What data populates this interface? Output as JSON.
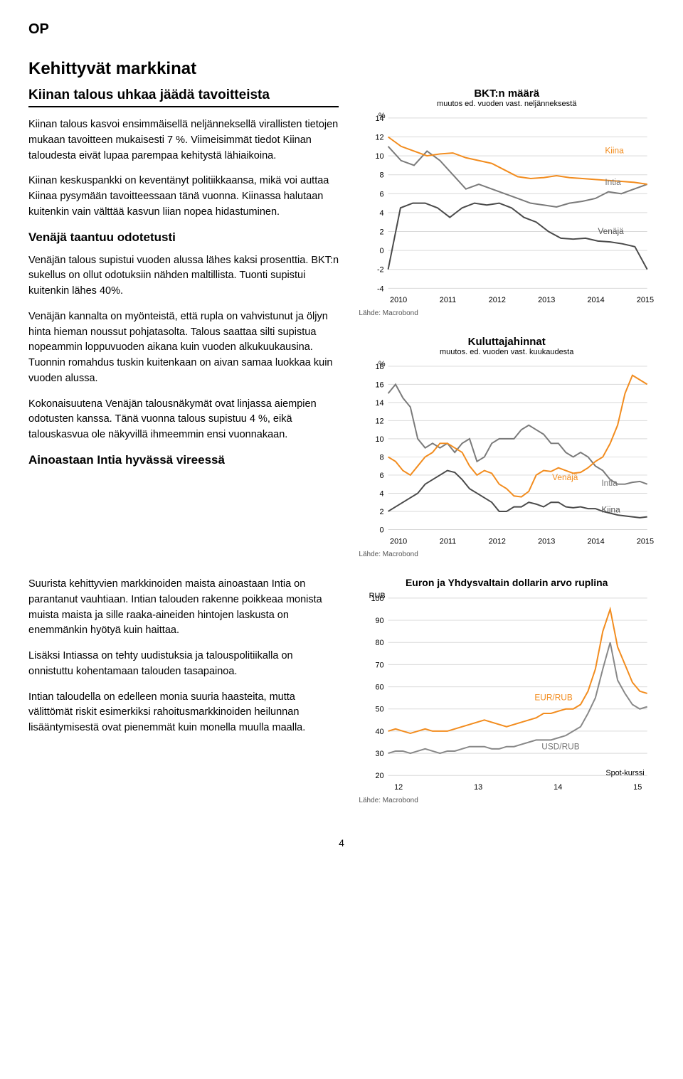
{
  "header": {
    "brand": "OP"
  },
  "title": "Kehittyvät markkinat",
  "subtitle": "Kiinan talous uhkaa jäädä tavoitteista",
  "paragraphs": {
    "p1": "Kiinan talous kasvoi ensimmäisellä neljänneksellä virallisten tietojen mukaan tavoitteen mukaisesti 7 %. Viimeisimmät tiedot Kiinan taloudesta eivät lupaa parempaa kehitystä lähiaikoina.",
    "p2": "Kiinan keskuspankki on keventänyt politiikkaansa, mikä voi auttaa Kiinaa pysymään tavoitteessaan tänä vuonna. Kiinassa halutaan kuitenkin vain välttää kasvun liian nopea hidastuminen.",
    "h2": "Venäjä taantuu odotetusti",
    "p3": "Venäjän talous supistui vuoden alussa lähes kaksi prosenttia. BKT:n sukellus on ollut odotuksiin nähden maltillista. Tuonti supistui kuitenkin lähes 40%.",
    "p4": "Venäjän kannalta on myönteistä, että rupla on vahvistunut ja öljyn hinta hieman noussut pohjatasolta. Talous saattaa silti supistua nopeammin loppuvuoden aikana kuin vuoden alkukuukausina. Tuonnin romahdus tuskin kuitenkaan on aivan samaa luokkaa kuin vuoden alussa.",
    "p5": "Kokonaisuutena Venäjän talousnäkymät ovat linjassa aiempien odotusten kanssa. Tänä vuonna talous supistuu 4 %, eikä talouskasvua ole näkyvillä ihmeemmin ensi vuonnakaan.",
    "h3": "Ainoastaan Intia hyvässä vireessä",
    "p6": "Suurista kehittyvien markkinoiden maista ainoastaan Intia on parantanut vauhtiaan. Intian talouden rakenne poikkeaa monista muista maista ja sille raaka-aineiden hintojen laskusta on enemmänkin hyötyä kuin haittaa.",
    "p7": "Lisäksi Intiassa on tehty uudistuksia ja talouspolitiikalla on onnistuttu kohentamaan talouden tasapainoa.",
    "p8": "Intian taloudella on edelleen monia suuria haasteita, mutta välittömät riskit esimerkiksi rahoitusmarkkinoiden heilunnan lisääntymisestä ovat pienemmät kuin monella muulla maalla."
  },
  "chart1": {
    "title": "BKT:n määrä",
    "subtitle": "muutos ed. vuoden vast. neljänneksestä",
    "ylabel": "%",
    "years": [
      "2010",
      "2011",
      "2012",
      "2013",
      "2014",
      "2015"
    ],
    "ylim": [
      -4,
      14
    ],
    "ytick_step": 2,
    "source": "Lähde: Macrobond",
    "colors": {
      "kiina": "#f28c1e",
      "intia": "#7a7a7a",
      "venaja": "#4a4a4a",
      "grid": "#d9d9d9",
      "bg": "#ffffff"
    },
    "series": {
      "kiina": {
        "label": "Kiina",
        "values": [
          12,
          11,
          10.5,
          10,
          10.2,
          10.3,
          9.8,
          9.5,
          9.2,
          8.5,
          7.8,
          7.6,
          7.7,
          7.9,
          7.7,
          7.6,
          7.5,
          7.4,
          7.3,
          7.2,
          7.0
        ]
      },
      "intia": {
        "label": "Intia",
        "values": [
          11,
          9.5,
          9.0,
          10.5,
          9.5,
          8.0,
          6.5,
          7.0,
          6.5,
          6.0,
          5.5,
          5.0,
          4.8,
          4.6,
          5.0,
          5.2,
          5.5,
          6.2,
          6.0,
          6.5,
          7.0
        ]
      },
      "venaja": {
        "label": "Venäjä",
        "values": [
          -2,
          4.5,
          5.0,
          5.0,
          4.5,
          3.5,
          4.5,
          5.0,
          4.8,
          5.0,
          4.5,
          3.5,
          3.0,
          2.0,
          1.3,
          1.2,
          1.3,
          1.0,
          0.9,
          0.7,
          0.4,
          -2.0
        ]
      }
    },
    "line_width": 2
  },
  "chart2": {
    "title": "Kuluttajahinnat",
    "subtitle": "muutos. ed. vuoden vast. kuukaudesta",
    "ylabel": "%",
    "years": [
      "2010",
      "2011",
      "2012",
      "2013",
      "2014",
      "2015"
    ],
    "ylim": [
      0,
      18
    ],
    "ytick_step": 2,
    "source": "Lähde: Macrobond",
    "colors": {
      "venaja": "#f28c1e",
      "intia": "#7a7a7a",
      "kiina": "#4a4a4a",
      "grid": "#d9d9d9"
    },
    "series": {
      "venaja": {
        "label": "Venäjä",
        "values": [
          8,
          7.5,
          6.5,
          6,
          7,
          8,
          8.5,
          9.5,
          9.5,
          9,
          8.5,
          7,
          6,
          6.5,
          6.2,
          5,
          4.5,
          3.7,
          3.6,
          4.2,
          6,
          6.5,
          6.4,
          6.8,
          6.5,
          6.2,
          6.3,
          6.8,
          7.5,
          8,
          9.5,
          11.5,
          15,
          17,
          16.5,
          16
        ]
      },
      "intia": {
        "label": "Intia",
        "values": [
          15,
          16,
          14.5,
          13.5,
          10,
          9,
          9.5,
          9,
          9.5,
          8.5,
          9.5,
          10,
          7.5,
          8,
          9.5,
          10,
          10,
          10,
          11,
          11.5,
          11,
          10.5,
          9.5,
          9.5,
          8.5,
          8,
          8.5,
          8,
          7,
          6.5,
          5.5,
          5,
          5,
          5.2,
          5.3,
          5
        ]
      },
      "kiina": {
        "label": "Kiina",
        "values": [
          2,
          2.5,
          3,
          3.5,
          4,
          5,
          5.5,
          6,
          6.5,
          6.3,
          5.5,
          4.5,
          4,
          3.5,
          3,
          2,
          2,
          2.5,
          2.5,
          3,
          2.8,
          2.5,
          3,
          3,
          2.5,
          2.4,
          2.5,
          2.3,
          2.3,
          2,
          1.8,
          1.6,
          1.5,
          1.4,
          1.3,
          1.4
        ]
      }
    },
    "line_width": 2
  },
  "chart3": {
    "title": "Euron ja Yhdysvaltain dollarin arvo ruplina",
    "ylabel": "RUB",
    "years": [
      "12",
      "13",
      "14",
      "15"
    ],
    "ylim": [
      20,
      100
    ],
    "ytick_step": 10,
    "source": "Lähde: Macrobond",
    "note": "Spot-kurssi",
    "colors": {
      "eur": "#f28c1e",
      "usd": "#888888",
      "grid": "#d9d9d9"
    },
    "series": {
      "eur": {
        "label": "EUR/RUB",
        "values": [
          40,
          41,
          40,
          39,
          40,
          41,
          40,
          40,
          40,
          41,
          42,
          43,
          44,
          45,
          44,
          43,
          42,
          43,
          44,
          45,
          46,
          48,
          48,
          49,
          50,
          50,
          52,
          58,
          68,
          85,
          95,
          78,
          70,
          62,
          58,
          57
        ]
      },
      "usd": {
        "label": "USD/RUB",
        "values": [
          30,
          31,
          31,
          30,
          31,
          32,
          31,
          30,
          31,
          31,
          32,
          33,
          33,
          33,
          32,
          32,
          33,
          33,
          34,
          35,
          36,
          36,
          36,
          37,
          38,
          40,
          42,
          48,
          55,
          68,
          80,
          63,
          57,
          52,
          50,
          51
        ]
      }
    },
    "line_width": 2
  },
  "page_number": "4"
}
